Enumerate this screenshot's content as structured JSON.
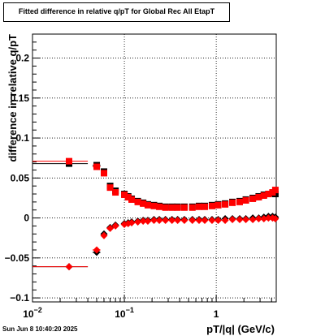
{
  "title": "Fitted difference in relative q/pT for Global Rec All EtapT",
  "timestamp": "Sun Jun  8 10:40:20 2025",
  "colors": {
    "series_black": "#000000",
    "series_red": "#ff0000",
    "grid": "#000000"
  },
  "chart_data": {
    "type": "scatter",
    "title": "Fitted difference in relative q/pT for Global Rec All EtapT",
    "xlabel": "pT/|q| (GeV/c)",
    "ylabel": "difference in relative q/pT",
    "xscale": "log",
    "xlim": [
      0.01,
      4.5
    ],
    "ylim": [
      -0.105,
      0.23
    ],
    "grid": true,
    "x_ticks": [
      {
        "value": 0.01,
        "label": "10",
        "sup": "−2"
      },
      {
        "value": 0.1,
        "label": "10",
        "sup": "−1"
      },
      {
        "value": 1,
        "label": "1",
        "sup": ""
      }
    ],
    "y_ticks": [
      {
        "value": -0.1,
        "label": "−0.1"
      },
      {
        "value": -0.05,
        "label": "−0.05"
      },
      {
        "value": 0,
        "label": "0"
      },
      {
        "value": 0.05,
        "label": "0.05"
      },
      {
        "value": 0.1,
        "label": "0.1"
      },
      {
        "value": 0.15,
        "label": "0.15"
      },
      {
        "value": 0.2,
        "label": "0.2"
      }
    ],
    "series": [
      {
        "marker": "square",
        "color": "#000000",
        "points": [
          {
            "x": 0.025,
            "y": 0.068,
            "xlo": 0.01,
            "xhi": 0.04
          },
          {
            "x": 0.05,
            "y": 0.066,
            "xlo": 0.045,
            "xhi": 0.055
          },
          {
            "x": 0.06,
            "y": 0.058
          },
          {
            "x": 0.07,
            "y": 0.04
          },
          {
            "x": 0.08,
            "y": 0.034
          },
          {
            "x": 0.1,
            "y": 0.03
          },
          {
            "x": 0.11,
            "y": 0.027
          },
          {
            "x": 0.12,
            "y": 0.024
          },
          {
            "x": 0.14,
            "y": 0.021
          },
          {
            "x": 0.16,
            "y": 0.019
          },
          {
            "x": 0.18,
            "y": 0.017
          },
          {
            "x": 0.21,
            "y": 0.016
          },
          {
            "x": 0.24,
            "y": 0.015
          },
          {
            "x": 0.28,
            "y": 0.014
          },
          {
            "x": 0.33,
            "y": 0.014
          },
          {
            "x": 0.38,
            "y": 0.014
          },
          {
            "x": 0.45,
            "y": 0.014
          },
          {
            "x": 0.55,
            "y": 0.014
          },
          {
            "x": 0.65,
            "y": 0.015
          },
          {
            "x": 0.75,
            "y": 0.015
          },
          {
            "x": 0.9,
            "y": 0.016
          },
          {
            "x": 1.05,
            "y": 0.017
          },
          {
            "x": 1.25,
            "y": 0.018
          },
          {
            "x": 1.5,
            "y": 0.02
          },
          {
            "x": 1.8,
            "y": 0.021
          },
          {
            "x": 2.1,
            "y": 0.023
          },
          {
            "x": 2.5,
            "y": 0.025
          },
          {
            "x": 2.9,
            "y": 0.027
          },
          {
            "x": 3.3,
            "y": 0.029
          },
          {
            "x": 3.7,
            "y": 0.03
          },
          {
            "x": 4.1,
            "y": 0.031
          },
          {
            "x": 4.4,
            "y": 0.03
          }
        ]
      },
      {
        "marker": "square",
        "color": "#ff0000",
        "points": [
          {
            "x": 0.025,
            "y": 0.071,
            "xlo": 0.01,
            "xhi": 0.04
          },
          {
            "x": 0.05,
            "y": 0.064,
            "xlo": 0.045,
            "xhi": 0.055
          },
          {
            "x": 0.06,
            "y": 0.056
          },
          {
            "x": 0.07,
            "y": 0.038
          },
          {
            "x": 0.08,
            "y": 0.032
          },
          {
            "x": 0.1,
            "y": 0.029
          },
          {
            "x": 0.11,
            "y": 0.026
          },
          {
            "x": 0.12,
            "y": 0.023
          },
          {
            "x": 0.14,
            "y": 0.02
          },
          {
            "x": 0.16,
            "y": 0.018
          },
          {
            "x": 0.18,
            "y": 0.016
          },
          {
            "x": 0.21,
            "y": 0.015
          },
          {
            "x": 0.24,
            "y": 0.014
          },
          {
            "x": 0.28,
            "y": 0.013
          },
          {
            "x": 0.33,
            "y": 0.013
          },
          {
            "x": 0.38,
            "y": 0.013
          },
          {
            "x": 0.45,
            "y": 0.013
          },
          {
            "x": 0.55,
            "y": 0.013
          },
          {
            "x": 0.65,
            "y": 0.014
          },
          {
            "x": 0.75,
            "y": 0.014
          },
          {
            "x": 0.9,
            "y": 0.015
          },
          {
            "x": 1.05,
            "y": 0.016
          },
          {
            "x": 1.25,
            "y": 0.017
          },
          {
            "x": 1.5,
            "y": 0.019
          },
          {
            "x": 1.8,
            "y": 0.02
          },
          {
            "x": 2.1,
            "y": 0.022
          },
          {
            "x": 2.5,
            "y": 0.024
          },
          {
            "x": 2.9,
            "y": 0.026
          },
          {
            "x": 3.3,
            "y": 0.028
          },
          {
            "x": 3.7,
            "y": 0.03
          },
          {
            "x": 4.1,
            "y": 0.032
          },
          {
            "x": 4.4,
            "y": 0.035
          }
        ]
      },
      {
        "marker": "diamond",
        "color": "#000000",
        "points": [
          {
            "x": 0.025,
            "y": -0.061,
            "xlo": 0.01,
            "xhi": 0.04
          },
          {
            "x": 0.05,
            "y": -0.043,
            "xlo": 0.045,
            "xhi": 0.055
          },
          {
            "x": 0.06,
            "y": -0.02
          },
          {
            "x": 0.07,
            "y": -0.012
          },
          {
            "x": 0.08,
            "y": -0.009
          },
          {
            "x": 0.1,
            "y": -0.007
          },
          {
            "x": 0.11,
            "y": -0.006
          },
          {
            "x": 0.12,
            "y": -0.005
          },
          {
            "x": 0.14,
            "y": -0.004
          },
          {
            "x": 0.16,
            "y": -0.003
          },
          {
            "x": 0.18,
            "y": -0.003
          },
          {
            "x": 0.21,
            "y": -0.002
          },
          {
            "x": 0.24,
            "y": -0.002
          },
          {
            "x": 0.28,
            "y": -0.002
          },
          {
            "x": 0.33,
            "y": -0.002
          },
          {
            "x": 0.38,
            "y": -0.002
          },
          {
            "x": 0.45,
            "y": -0.002
          },
          {
            "x": 0.55,
            "y": -0.002
          },
          {
            "x": 0.65,
            "y": -0.002
          },
          {
            "x": 0.75,
            "y": -0.002
          },
          {
            "x": 0.9,
            "y": -0.002
          },
          {
            "x": 1.05,
            "y": -0.002
          },
          {
            "x": 1.25,
            "y": -0.001
          },
          {
            "x": 1.5,
            "y": -0.001
          },
          {
            "x": 1.8,
            "y": -0.001
          },
          {
            "x": 2.1,
            "y": -0.001
          },
          {
            "x": 2.5,
            "y": 0.0
          },
          {
            "x": 2.9,
            "y": 0.0
          },
          {
            "x": 3.3,
            "y": 0.001
          },
          {
            "x": 3.7,
            "y": 0.002
          },
          {
            "x": 4.1,
            "y": 0.002
          },
          {
            "x": 4.4,
            "y": 0.001
          }
        ]
      },
      {
        "marker": "diamond",
        "color": "#ff0000",
        "points": [
          {
            "x": 0.025,
            "y": -0.061,
            "xlo": 0.01,
            "xhi": 0.04
          },
          {
            "x": 0.05,
            "y": -0.04,
            "xlo": 0.045,
            "xhi": 0.055
          },
          {
            "x": 0.06,
            "y": -0.022
          },
          {
            "x": 0.07,
            "y": -0.013
          },
          {
            "x": 0.08,
            "y": -0.01
          },
          {
            "x": 0.1,
            "y": -0.008
          },
          {
            "x": 0.11,
            "y": -0.007
          },
          {
            "x": 0.12,
            "y": -0.006
          },
          {
            "x": 0.14,
            "y": -0.005
          },
          {
            "x": 0.16,
            "y": -0.004
          },
          {
            "x": 0.18,
            "y": -0.004
          },
          {
            "x": 0.21,
            "y": -0.003
          },
          {
            "x": 0.24,
            "y": -0.003
          },
          {
            "x": 0.28,
            "y": -0.003
          },
          {
            "x": 0.33,
            "y": -0.003
          },
          {
            "x": 0.38,
            "y": -0.003
          },
          {
            "x": 0.45,
            "y": -0.003
          },
          {
            "x": 0.55,
            "y": -0.003
          },
          {
            "x": 0.65,
            "y": -0.003
          },
          {
            "x": 0.75,
            "y": -0.003
          },
          {
            "x": 0.9,
            "y": -0.003
          },
          {
            "x": 1.05,
            "y": -0.003
          },
          {
            "x": 1.25,
            "y": -0.003
          },
          {
            "x": 1.5,
            "y": -0.002
          },
          {
            "x": 1.8,
            "y": -0.002
          },
          {
            "x": 2.1,
            "y": -0.002
          },
          {
            "x": 2.5,
            "y": -0.002
          },
          {
            "x": 2.9,
            "y": -0.001
          },
          {
            "x": 3.3,
            "y": -0.001
          },
          {
            "x": 3.7,
            "y": 0.0
          },
          {
            "x": 4.1,
            "y": 0.0
          },
          {
            "x": 4.4,
            "y": -0.001
          }
        ]
      }
    ]
  }
}
